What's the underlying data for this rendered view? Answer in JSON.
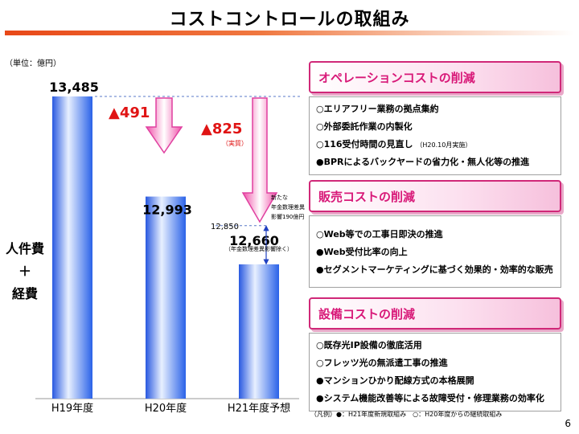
{
  "page": {
    "title": "コストコントロールの取組み",
    "page_number": "6"
  },
  "chart_data": {
    "type": "bar",
    "unit_label": "（単位：億円）",
    "ylabel_lines": [
      "人件費",
      "＋",
      "経費"
    ],
    "categories": [
      "H19年度",
      "H20年度",
      "H21年度予想"
    ],
    "values": [
      13485,
      12993,
      12660
    ],
    "value_labels": [
      "13,485",
      "12,993",
      "12,660"
    ],
    "ylim": [
      12000,
      13485
    ],
    "reduction_labels": [
      "▲491",
      "▲825"
    ],
    "annotations": {
      "actual": "（実質）",
      "reference_value": 12850,
      "reference_label": "12,850",
      "new_pension_effect": [
        "新たな",
        "年金数理差異",
        "影響190億円"
      ],
      "excluding_note": "（年金数理差異影響除く）"
    },
    "colors": {
      "bar": "#3c78f0",
      "arrow": "#f06cb4",
      "reduction_text": "#e01414"
    }
  },
  "panels": [
    {
      "header": "オペレーションコストの削減",
      "items": [
        {
          "text": "○エリアフリー業務の拠点集約",
          "note": ""
        },
        {
          "text": "○外部委託作業の内製化",
          "note": ""
        },
        {
          "text": "○116受付時間の見直し",
          "note": "（H20.10月実施）"
        },
        {
          "text": "●BPRによるバックヤードの省力化・無人化等の推進",
          "note": ""
        }
      ]
    },
    {
      "header": "販売コストの削減",
      "items": [
        {
          "text": "○Web等での工事日即決の推進",
          "note": ""
        },
        {
          "text": "●Web受付比率の向上",
          "note": ""
        },
        {
          "text": "●セグメントマーケティングに基づく効果的・効率的な販売",
          "note": ""
        }
      ]
    },
    {
      "header": "設備コストの削減",
      "items": [
        {
          "text": "○既存光IP設備の徹底活用",
          "note": ""
        },
        {
          "text": "○フレッツ光の無派遣工事の推進",
          "note": ""
        },
        {
          "text": "●マンションひかり配線方式の本格展開",
          "note": ""
        },
        {
          "text": "●システム機能改善等による故障受付・修理業務の効率化",
          "note": ""
        }
      ]
    }
  ],
  "legend": "（凡例）●：H21年度新規取組み　○：H20年度からの継続取組み"
}
